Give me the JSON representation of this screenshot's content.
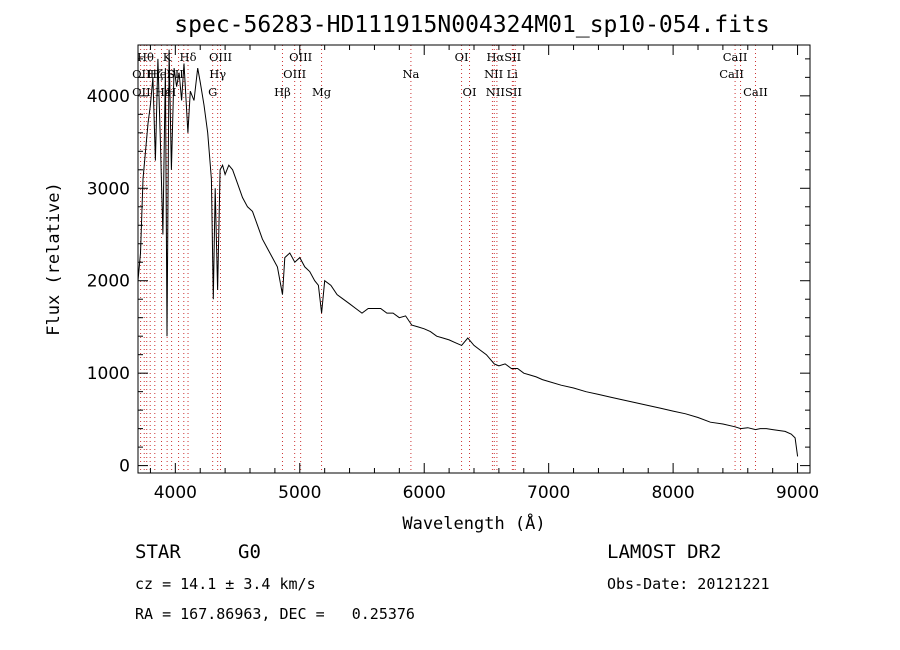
{
  "chart_data": {
    "type": "line",
    "title": "spec-56283-HD111915N004324M01_sp10-054.fits",
    "xlabel": "Wavelength (Å)",
    "ylabel": "Flux (relative)",
    "xlim": [
      3700,
      9100
    ],
    "ylim": [
      -80,
      4550
    ],
    "xticks": [
      4000,
      5000,
      6000,
      7000,
      8000,
      9000
    ],
    "yticks": [
      0,
      1000,
      2000,
      3000,
      4000
    ],
    "grid": false,
    "series": [
      {
        "x": [
          3700,
          3720,
          3740,
          3760,
          3780,
          3800,
          3820,
          3840,
          3860,
          3880,
          3900,
          3920,
          3933,
          3950,
          3968,
          3990,
          4010,
          4030,
          4050,
          4070,
          4101,
          4120,
          4150,
          4180,
          4200,
          4230,
          4260,
          4290,
          4305,
          4320,
          4340,
          4360,
          4380,
          4400,
          4430,
          4460,
          4500,
          4540,
          4580,
          4620,
          4660,
          4700,
          4740,
          4780,
          4820,
          4861,
          4880,
          4920,
          4960,
          5000,
          5040,
          5080,
          5120,
          5150,
          5175,
          5200,
          5250,
          5300,
          5350,
          5400,
          5450,
          5500,
          5550,
          5600,
          5650,
          5700,
          5750,
          5800,
          5850,
          5900,
          5950,
          6000,
          6050,
          6100,
          6150,
          6200,
          6250,
          6300,
          6350,
          6400,
          6450,
          6500,
          6563,
          6600,
          6650,
          6700,
          6750,
          6800,
          6850,
          6900,
          6950,
          7000,
          7100,
          7200,
          7300,
          7400,
          7500,
          7600,
          7700,
          7800,
          7900,
          8000,
          8100,
          8200,
          8300,
          8400,
          8498,
          8542,
          8600,
          8662,
          8700,
          8750,
          8800,
          8850,
          8900,
          8950,
          8980,
          9000
        ],
        "y": [
          2000,
          2300,
          3100,
          3400,
          3700,
          3900,
          4200,
          3300,
          4400,
          3500,
          2500,
          4300,
          1400,
          4500,
          3200,
          4300,
          4100,
          4250,
          3950,
          4350,
          3600,
          4050,
          3950,
          4300,
          4150,
          3900,
          3600,
          3100,
          1800,
          3000,
          1900,
          3200,
          3250,
          3150,
          3250,
          3200,
          3050,
          2900,
          2800,
          2750,
          2600,
          2450,
          2350,
          2250,
          2150,
          1850,
          2250,
          2300,
          2200,
          2250,
          2150,
          2100,
          2000,
          1950,
          1650,
          2000,
          1950,
          1850,
          1800,
          1750,
          1700,
          1650,
          1700,
          1700,
          1700,
          1650,
          1650,
          1600,
          1620,
          1520,
          1500,
          1480,
          1450,
          1400,
          1380,
          1360,
          1330,
          1300,
          1380,
          1300,
          1250,
          1200,
          1100,
          1080,
          1100,
          1050,
          1050,
          1000,
          980,
          960,
          930,
          910,
          870,
          840,
          800,
          770,
          740,
          710,
          680,
          650,
          620,
          590,
          560,
          520,
          470,
          450,
          420,
          400,
          410,
          390,
          400,
          400,
          390,
          380,
          370,
          340,
          300,
          100
        ]
      }
    ],
    "line_markers": {
      "positions": [
        3721,
        3750,
        3770,
        3798,
        3835,
        3889,
        3934,
        3970,
        4026,
        4068,
        4102,
        4300,
        4340,
        4363,
        4861,
        4959,
        5007,
        5175,
        5893,
        6300,
        6364,
        6548,
        6563,
        6584,
        6708,
        6716,
        6731,
        8498,
        8542,
        8662
      ],
      "labels_row1": [
        {
          "text": "Hθ",
          "x": 3760
        },
        {
          "text": "K",
          "x": 3933
        },
        {
          "text": "Hδ",
          "x": 4102
        },
        {
          "text": "OIII",
          "x": 4363
        },
        {
          "text": "OIII",
          "x": 5007
        },
        {
          "text": "OI",
          "x": 6300
        },
        {
          "text": "HαSII",
          "x": 6640
        },
        {
          "text": "CaII",
          "x": 8498
        }
      ],
      "labels_row2": [
        {
          "text": "OII",
          "x": 3727
        },
        {
          "text": "Hζ",
          "x": 3838
        },
        {
          "text": "HeI",
          "x": 3880
        },
        {
          "text": "SII",
          "x": 4000
        },
        {
          "text": "Hγ",
          "x": 4340
        },
        {
          "text": "OIII",
          "x": 4959
        },
        {
          "text": "Na",
          "x": 5893
        },
        {
          "text": "NII",
          "x": 6558
        },
        {
          "text": "Li",
          "x": 6708
        },
        {
          "text": "CaII",
          "x": 8470
        }
      ],
      "labels_row3": [
        {
          "text": "OII",
          "x": 3727
        },
        {
          "text": "Hε",
          "x": 3900
        },
        {
          "text": "H",
          "x": 3968
        },
        {
          "text": "G",
          "x": 4300
        },
        {
          "text": "Hβ",
          "x": 4861
        },
        {
          "text": "Mg",
          "x": 5175
        },
        {
          "text": "OI",
          "x": 6364
        },
        {
          "text": "NIISII",
          "x": 6640
        },
        {
          "text": "CaII",
          "x": 8662
        }
      ]
    }
  },
  "info": {
    "class_label": "STAR",
    "subclass": "G0",
    "survey": "LAMOST DR2",
    "cz": "cz = 14.1 ± 3.4 km/s",
    "obs_date": "Obs-Date: 20121221",
    "coords": "RA = 167.86963, DEC =   0.25376"
  },
  "colors": {
    "line_marker": "#cc3333",
    "spectrum": "#000000"
  }
}
